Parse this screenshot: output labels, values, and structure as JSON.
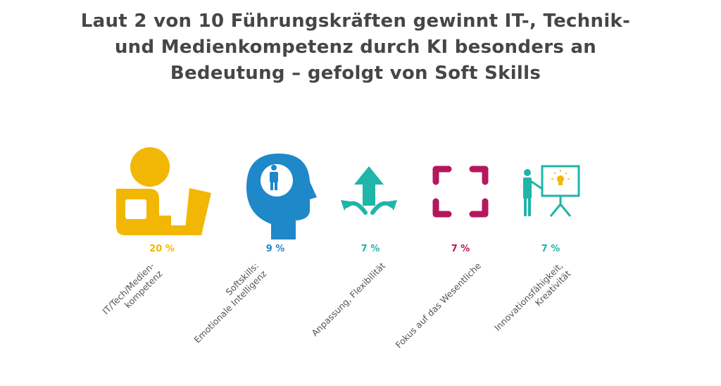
{
  "title_lines": [
    "Laut 2 von 10 Führungskräften gewinnt IT-, Technik-",
    "und Medienkompetenz durch KI besonders an",
    "Bedeutung – gefolgt von Soft Skills"
  ],
  "chart_data": {
    "type": "bar",
    "title": "Laut 2 von 10 Führungskräften gewinnt IT-, Technik- und Medienkompetenz durch KI besonders an Bedeutung – gefolgt von Soft Skills",
    "unit": "%",
    "items": [
      {
        "label_lines": [
          "IT/Tech/Medien-",
          "kompetenz"
        ],
        "value": 20,
        "value_label": "20 %",
        "color": "#F2B705",
        "icon": "person-at-laptop-icon"
      },
      {
        "label_lines": [
          "Softskills:",
          "Emotionale Intelligenz"
        ],
        "value": 9,
        "value_label": "9 %",
        "color": "#1E88C8",
        "icon": "head-with-person-icon"
      },
      {
        "label_lines": [
          "Anpassung, Flexibilität"
        ],
        "value": 7,
        "value_label": "7 %",
        "color": "#1FB5A8",
        "icon": "diverging-arrows-icon"
      },
      {
        "label_lines": [
          "Fokus auf das Wesentliche"
        ],
        "value": 7,
        "value_label": "7 %",
        "color": "#B5175E",
        "icon": "focus-frame-icon"
      },
      {
        "label_lines": [
          "Innovationsfähigkeit,",
          "Kreativität"
        ],
        "value": 7,
        "value_label": "7 %",
        "color": "#1FB5A8",
        "icon": "presentation-idea-icon"
      }
    ]
  }
}
